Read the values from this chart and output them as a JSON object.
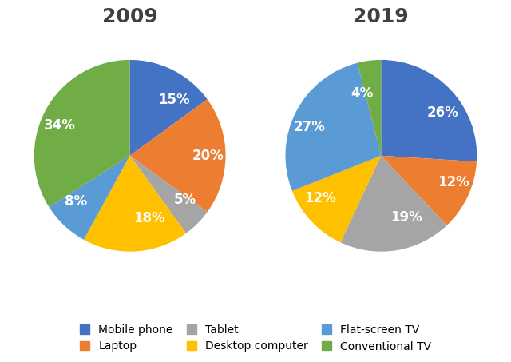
{
  "title_2009": "2009",
  "title_2019": "2019",
  "categories": [
    "Mobile phone",
    "Laptop",
    "Tablet",
    "Desktop computer",
    "Flat-screen TV",
    "Conventional TV"
  ],
  "colors": [
    "#4472C4",
    "#ED7D31",
    "#A5A5A5",
    "#FFC000",
    "#5B9BD5",
    "#70AD47"
  ],
  "values_2009": [
    15,
    20,
    5,
    18,
    8,
    34
  ],
  "values_2019": [
    26,
    12,
    19,
    12,
    27,
    4
  ],
  "labels_2009": [
    "15%",
    "20%",
    "5%",
    "18%",
    "8%",
    "34%"
  ],
  "labels_2019": [
    "26%",
    "12%",
    "19%",
    "12%",
    "27%",
    "4%"
  ],
  "startangle_2009": 90,
  "startangle_2019": 90,
  "title_fontsize": 18,
  "label_fontsize": 12,
  "legend_fontsize": 10,
  "title_color": "#404040",
  "background_color": "#ffffff",
  "labeldistance": 0.65
}
